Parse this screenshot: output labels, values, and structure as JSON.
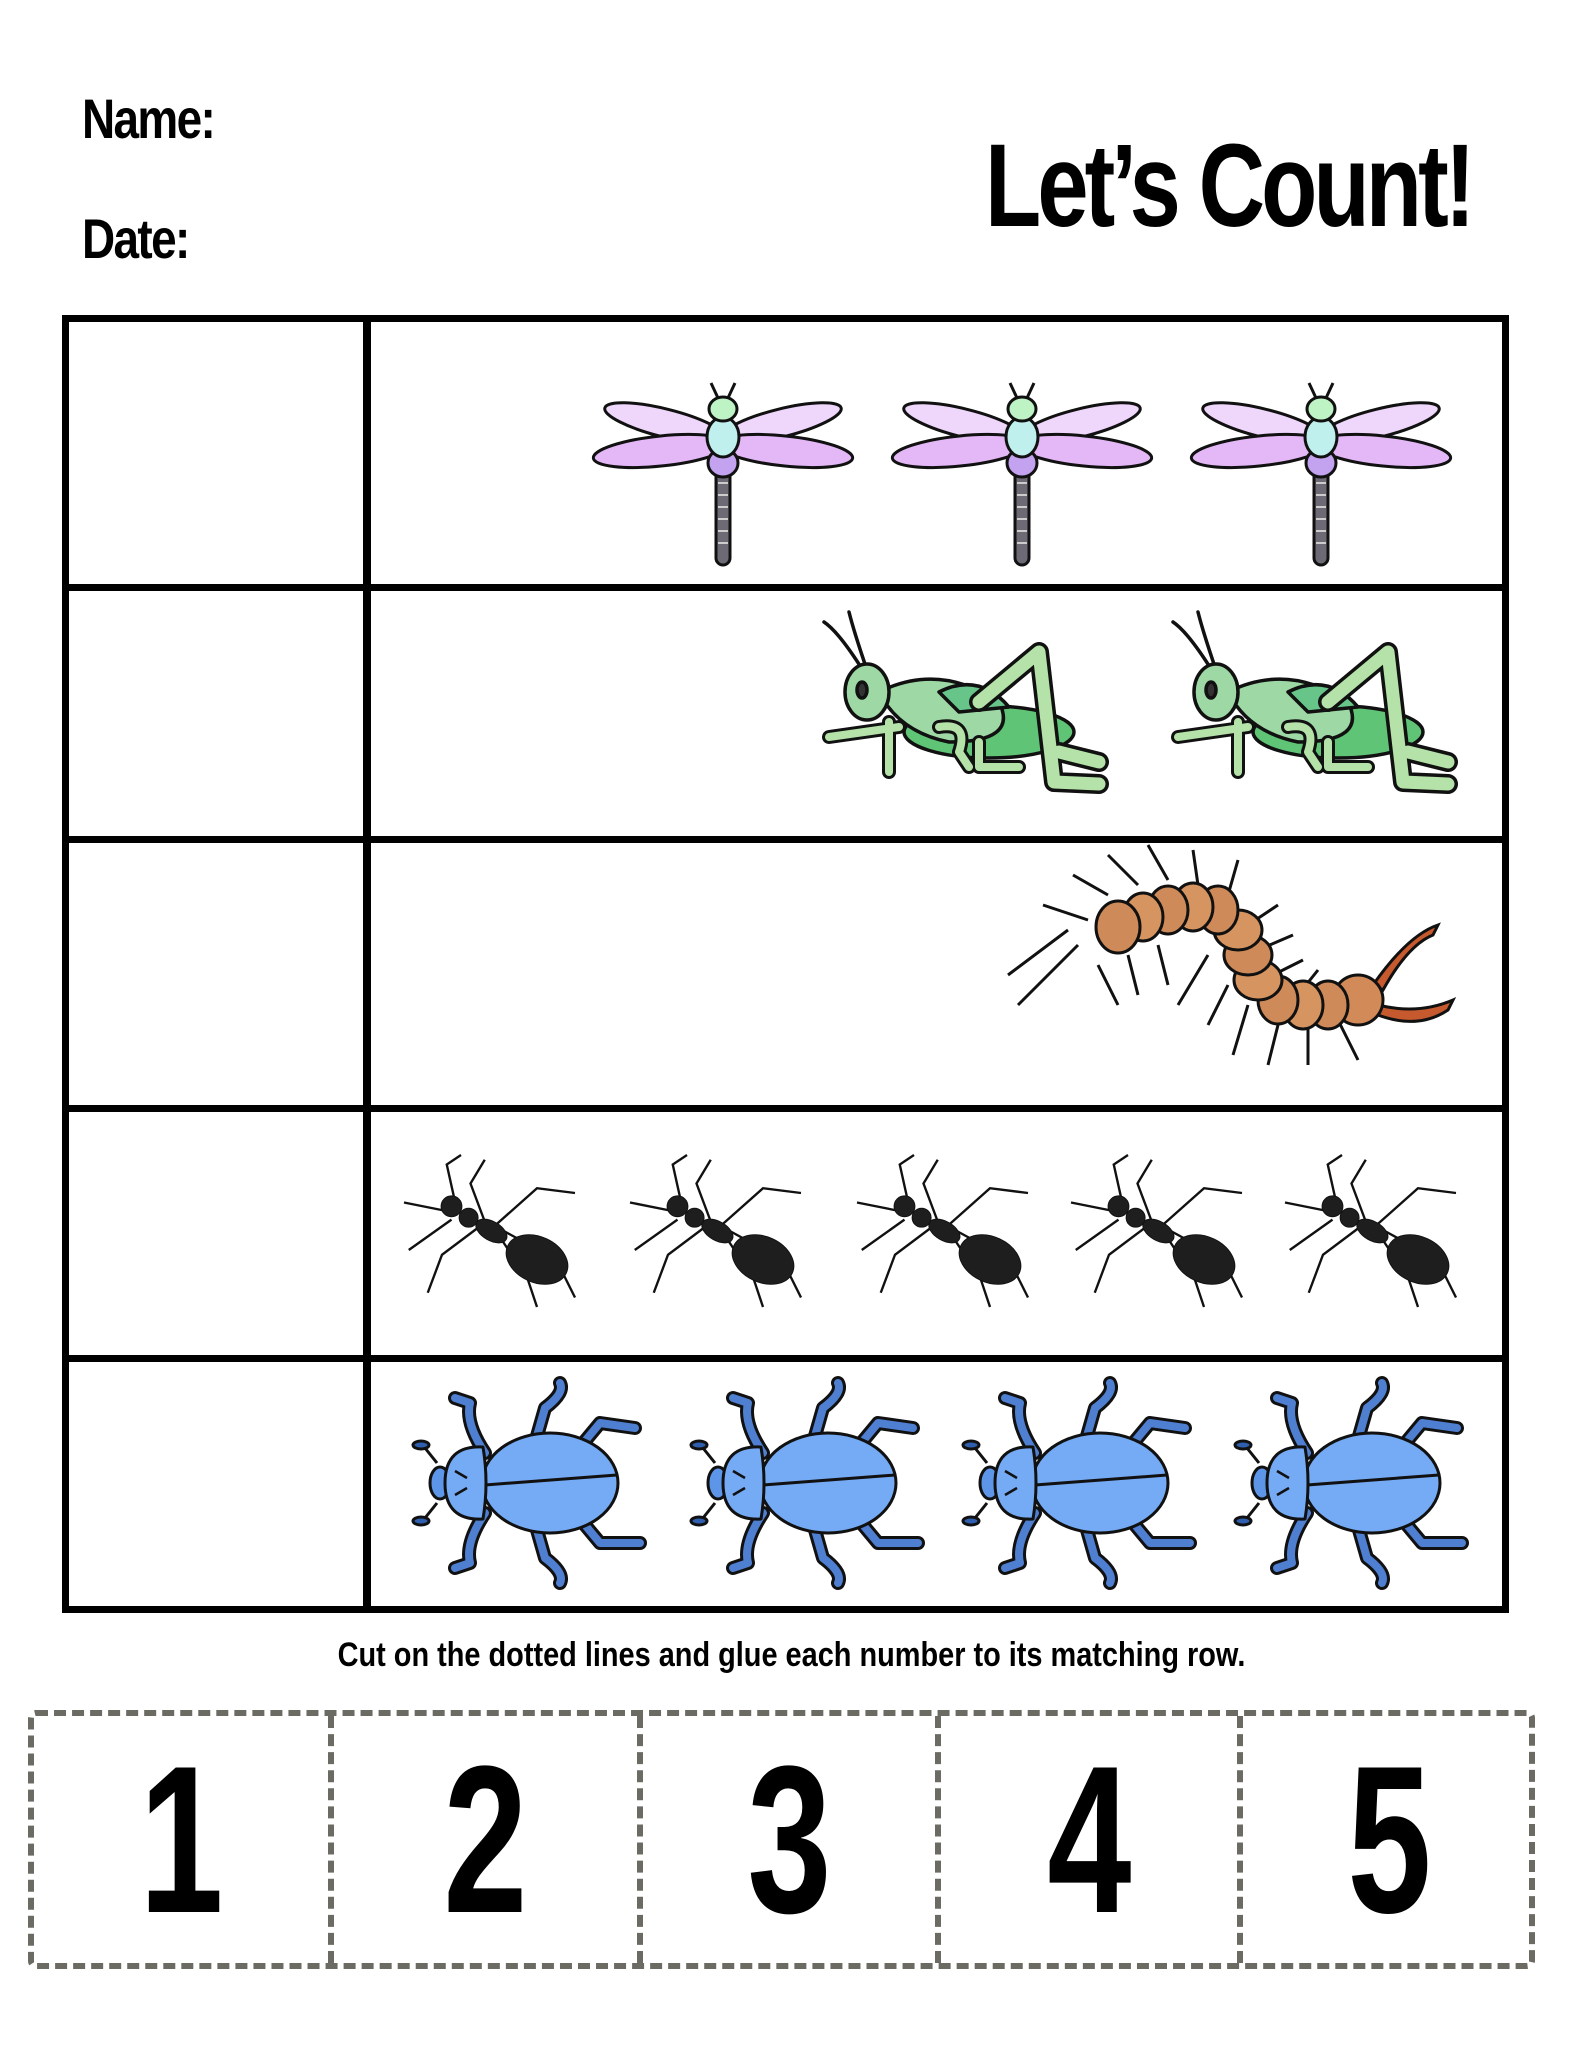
{
  "header": {
    "name_label": "Name:",
    "date_label": "Date:",
    "title": "Let’s Count!"
  },
  "rows": [
    {
      "insect": "dragonfly",
      "count": 3
    },
    {
      "insect": "grasshopper",
      "count": 2
    },
    {
      "insect": "centipede",
      "count": 1
    },
    {
      "insect": "ant",
      "count": 5
    },
    {
      "insect": "beetle",
      "count": 4
    }
  ],
  "instructions": "Cut on the dotted lines and glue each number to its matching row.",
  "number_cards": [
    "1",
    "2",
    "3",
    "4",
    "5"
  ],
  "colors": {
    "dragonfly_wing": "#e4b8f7",
    "grasshopper": "#9ed8a4",
    "centipede": "#cf8a5a",
    "ant": "#1e1e1e",
    "beetle": "#75aaf5",
    "cut_line": "#6b6b63"
  }
}
